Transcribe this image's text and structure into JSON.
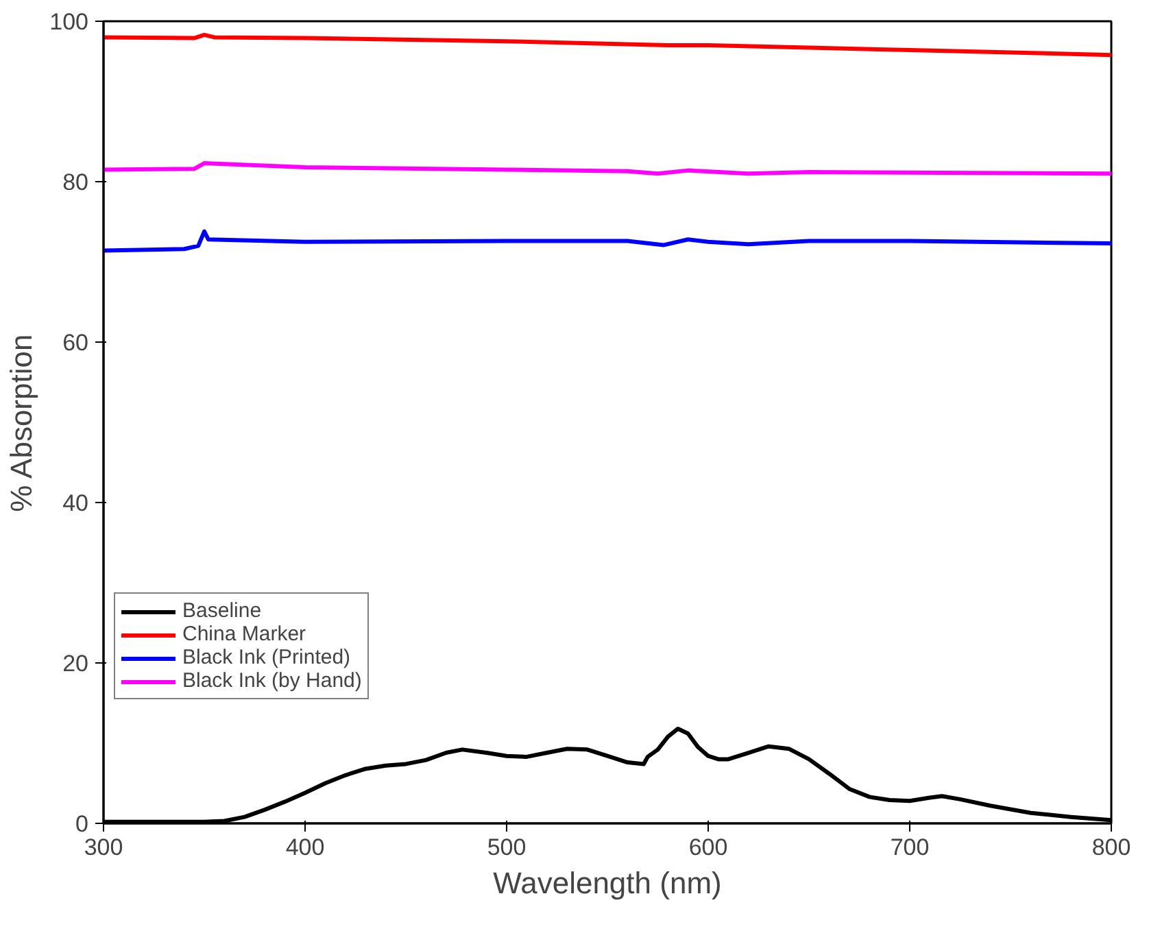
{
  "chart_data": {
    "type": "line",
    "xlabel": "Wavelength (nm)",
    "ylabel": "% Absorption",
    "xlim": [
      300,
      800
    ],
    "ylim": [
      0,
      100
    ],
    "xticks": [
      300,
      400,
      500,
      600,
      700,
      800
    ],
    "yticks": [
      0,
      20,
      40,
      60,
      80,
      100
    ],
    "grid": false,
    "legend": "bottom left",
    "line_style": "solid",
    "marker": "none",
    "series": [
      {
        "name": "Baseline",
        "color": "#000000",
        "x": [
          300,
          350,
          360,
          370,
          380,
          390,
          400,
          410,
          420,
          430,
          440,
          450,
          460,
          470,
          478,
          490,
          500,
          510,
          520,
          530,
          540,
          550,
          560,
          568,
          570,
          575,
          580,
          585,
          590,
          595,
          600,
          605,
          610,
          620,
          630,
          640,
          650,
          660,
          670,
          680,
          690,
          700,
          710,
          716,
          725,
          740,
          760,
          780,
          800
        ],
        "values": [
          0.2,
          0.2,
          0.3,
          0.8,
          1.7,
          2.7,
          3.8,
          5.0,
          6.0,
          6.8,
          7.2,
          7.4,
          7.9,
          8.8,
          9.2,
          8.8,
          8.4,
          8.3,
          8.8,
          9.3,
          9.2,
          8.4,
          7.6,
          7.4,
          8.3,
          9.2,
          10.8,
          11.8,
          11.2,
          9.5,
          8.4,
          8.0,
          8.0,
          8.8,
          9.6,
          9.3,
          8.0,
          6.2,
          4.3,
          3.3,
          2.9,
          2.8,
          3.2,
          3.4,
          3.0,
          2.2,
          1.3,
          0.8,
          0.4
        ]
      },
      {
        "name": "China Marker",
        "color": "#ff0000",
        "x": [
          300,
          345,
          350,
          355,
          400,
          500,
          580,
          600,
          650,
          700,
          800
        ],
        "values": [
          98.0,
          97.9,
          98.3,
          98.0,
          97.9,
          97.5,
          97.0,
          97.0,
          96.7,
          96.4,
          95.8
        ]
      },
      {
        "name": "Black Ink (Printed)",
        "color": "#0000ff",
        "x": [
          300,
          340,
          347,
          350,
          352,
          400,
          500,
          560,
          578,
          590,
          600,
          620,
          650,
          700,
          800
        ],
        "values": [
          71.4,
          71.6,
          72.0,
          73.8,
          72.8,
          72.5,
          72.6,
          72.6,
          72.1,
          72.8,
          72.5,
          72.2,
          72.6,
          72.6,
          72.3
        ]
      },
      {
        "name": "Black Ink (by Hand)",
        "color": "#ff00ff",
        "x": [
          300,
          345,
          350,
          360,
          400,
          500,
          560,
          575,
          590,
          620,
          650,
          800
        ],
        "values": [
          81.5,
          81.6,
          82.3,
          82.2,
          81.8,
          81.5,
          81.3,
          81.0,
          81.4,
          81.0,
          81.2,
          81.0
        ]
      }
    ]
  }
}
